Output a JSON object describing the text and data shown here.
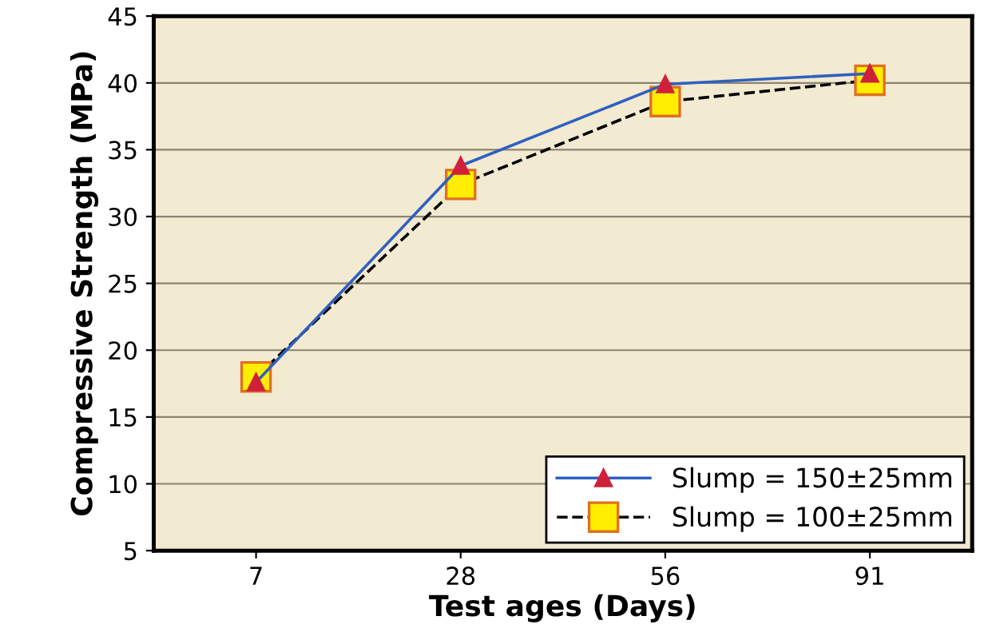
{
  "chart_data": {
    "type": "line",
    "xlabel": "Test ages (Days)",
    "ylabel": "Compressive Strength (MPa)",
    "categories": [
      "7",
      "28",
      "56",
      "91"
    ],
    "series": [
      {
        "name": "Slump = 150±25mm",
        "color": "#3060c0",
        "marker": "triangle",
        "line_style": "solid",
        "values": [
          17.6,
          33.8,
          39.9,
          40.7
        ]
      },
      {
        "name": "Slump = 100±25mm",
        "color": "#000000",
        "marker": "square",
        "line_style": "dashed",
        "values": [
          18.0,
          32.4,
          38.6,
          40.2
        ]
      }
    ],
    "ylim": [
      5,
      45
    ],
    "yticks": [
      5,
      10,
      15,
      20,
      25,
      30,
      35,
      40,
      45
    ],
    "grid": "y",
    "legend": "bottom right"
  }
}
